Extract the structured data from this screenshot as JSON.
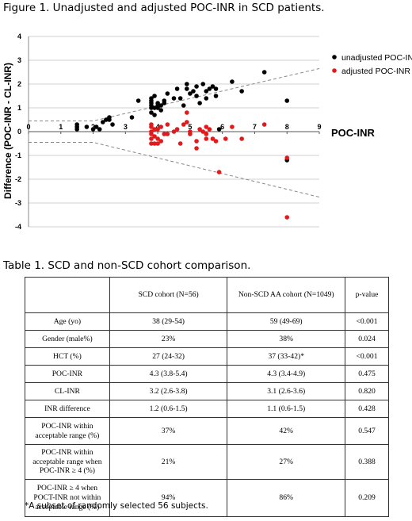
{
  "figure_title": "Figure 1. Unadjusted and adjusted POC-INR in SCD patients.",
  "chart_data": {
    "type": "scatter",
    "xlabel": "POC-INR",
    "ylabel": "Difference (POC-INR - CL-INR)",
    "xlim": [
      0,
      9
    ],
    "ylim": [
      -4,
      4
    ],
    "x_ticks": [
      "0",
      "1",
      "2",
      "3",
      "4",
      "5",
      "6",
      "7",
      "8",
      "9"
    ],
    "y_ticks": [
      "4",
      "3",
      "2",
      "1",
      "0",
      "-1",
      "-2",
      "-3",
      "-4"
    ],
    "grid": "horizontal",
    "legend_position": "top-right",
    "series": [
      {
        "name": "unadjusted POC-INR",
        "color": "#000000",
        "points": [
          [
            1.5,
            0.1
          ],
          [
            1.5,
            0.2
          ],
          [
            1.5,
            0.3
          ],
          [
            1.8,
            0.2
          ],
          [
            2.0,
            0.1
          ],
          [
            2.1,
            0.2
          ],
          [
            2.2,
            0.1
          ],
          [
            2.3,
            0.4
          ],
          [
            2.4,
            0.5
          ],
          [
            2.5,
            0.5
          ],
          [
            2.5,
            0.6
          ],
          [
            2.6,
            0.3
          ],
          [
            3.2,
            0.6
          ],
          [
            3.4,
            1.3
          ],
          [
            3.8,
            0.8
          ],
          [
            3.8,
            1.0
          ],
          [
            3.8,
            1.1
          ],
          [
            3.8,
            1.2
          ],
          [
            3.8,
            1.3
          ],
          [
            3.8,
            1.4
          ],
          [
            3.9,
            0.7
          ],
          [
            3.9,
            1.0
          ],
          [
            3.9,
            1.5
          ],
          [
            4.0,
            1.0
          ],
          [
            4.0,
            1.2
          ],
          [
            4.0,
            1.1
          ],
          [
            4.1,
            1.1
          ],
          [
            4.1,
            0.9
          ],
          [
            4.2,
            1.2
          ],
          [
            4.2,
            1.3
          ],
          [
            4.3,
            1.6
          ],
          [
            4.5,
            1.4
          ],
          [
            4.6,
            1.8
          ],
          [
            4.7,
            1.4
          ],
          [
            4.8,
            1.1
          ],
          [
            4.9,
            1.8
          ],
          [
            4.9,
            2.0
          ],
          [
            5.0,
            1.6
          ],
          [
            5.1,
            1.7
          ],
          [
            5.2,
            1.9
          ],
          [
            5.2,
            1.5
          ],
          [
            5.3,
            1.2
          ],
          [
            5.4,
            2.0
          ],
          [
            5.5,
            1.4
          ],
          [
            5.5,
            1.7
          ],
          [
            5.6,
            1.8
          ],
          [
            5.7,
            1.9
          ],
          [
            5.8,
            1.8
          ],
          [
            5.8,
            1.5
          ],
          [
            5.9,
            0.1
          ],
          [
            6.3,
            2.1
          ],
          [
            6.6,
            1.7
          ],
          [
            7.3,
            2.5
          ],
          [
            8.0,
            1.3
          ],
          [
            8.0,
            -1.2
          ]
        ]
      },
      {
        "name": "adjusted POC-INR",
        "color": "#e3191c",
        "points": [
          [
            3.8,
            -0.5
          ],
          [
            3.8,
            -0.3
          ],
          [
            3.8,
            0.0
          ],
          [
            3.8,
            0.2
          ],
          [
            3.8,
            0.3
          ],
          [
            3.8,
            -0.1
          ],
          [
            3.9,
            -0.2
          ],
          [
            3.9,
            0.1
          ],
          [
            3.9,
            -0.5
          ],
          [
            4.0,
            -0.3
          ],
          [
            4.0,
            -0.5
          ],
          [
            4.0,
            0.1
          ],
          [
            4.1,
            -0.4
          ],
          [
            4.1,
            0.2
          ],
          [
            4.2,
            -0.1
          ],
          [
            4.3,
            0.3
          ],
          [
            4.3,
            -0.1
          ],
          [
            4.5,
            0.0
          ],
          [
            4.6,
            0.1
          ],
          [
            4.7,
            -0.5
          ],
          [
            4.8,
            0.3
          ],
          [
            4.9,
            0.4
          ],
          [
            5.0,
            -0.1
          ],
          [
            5.0,
            0.0
          ],
          [
            5.2,
            -0.4
          ],
          [
            5.3,
            0.1
          ],
          [
            5.4,
            0.0
          ],
          [
            5.5,
            0.2
          ],
          [
            5.5,
            -0.1
          ],
          [
            5.6,
            0.1
          ],
          [
            5.7,
            -0.3
          ],
          [
            5.8,
            -0.4
          ],
          [
            5.9,
            -1.7
          ],
          [
            6.1,
            -0.3
          ],
          [
            6.3,
            0.2
          ],
          [
            6.6,
            -0.3
          ],
          [
            7.3,
            0.3
          ],
          [
            8.0,
            -1.1
          ],
          [
            8.0,
            -3.6
          ],
          [
            4.9,
            0.8
          ],
          [
            5.2,
            -0.7
          ],
          [
            5.5,
            -0.3
          ]
        ]
      }
    ]
  },
  "table_title": "Table 1. SCD and non-SCD cohort comparison.",
  "table": {
    "headers": [
      "",
      "SCD cohort (N=56)",
      "Non-SCD AA cohort (N=1049)",
      "p-value"
    ],
    "rows": [
      [
        "Age (yo)",
        "38 (29-54)",
        "59 (49-69)",
        "<0.001"
      ],
      [
        "Gender (male%)",
        "23%",
        "38%",
        "0.024"
      ],
      [
        "HCT (%)",
        "27 (24-32)",
        "37 (33-42)*",
        "<0.001"
      ],
      [
        "POC-INR",
        "4.3 (3.8-5.4)",
        "4.3 (3.4-4.9)",
        "0.475"
      ],
      [
        "CL-INR",
        "3.2 (2.6-3.8)",
        "3.1 (2.6-3.6)",
        "0.820"
      ],
      [
        "INR difference",
        "1.2 (0.6-1.5)",
        "1.1 (0.6-1.5)",
        "0.428"
      ],
      [
        "POC-INR within acceptable range (%)",
        "37%",
        "42%",
        "0.547"
      ],
      [
        "POC-INR within acceptable range when POC-INR ≥ 4 (%)",
        "21%",
        "27%",
        "0.388"
      ],
      [
        "POC-INR ≥ 4 when POCT-INR not within acceptable range (%)",
        "94%",
        "86%",
        "0.209"
      ]
    ]
  },
  "footnote": "*A subset of randomly selected 56 subjects."
}
